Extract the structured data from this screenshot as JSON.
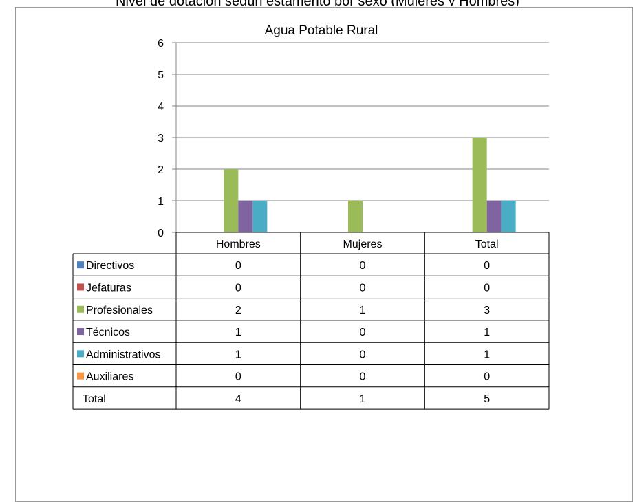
{
  "page_header_fragment": "Nivel de dotación según estamento por sexo (Mujeres y Hombres)",
  "chart_data": {
    "type": "bar",
    "title": "Agua Potable Rural",
    "categories": [
      "Hombres",
      "Mujeres",
      "Total"
    ],
    "ylim": [
      0,
      6
    ],
    "yticks": [
      0,
      1,
      2,
      3,
      4,
      5,
      6
    ],
    "grid": true,
    "legend": "data-table-left",
    "series": [
      {
        "name": "Directivos",
        "color": "#4f81bd",
        "values": [
          0,
          0,
          0
        ]
      },
      {
        "name": "Jefaturas",
        "color": "#c0504d",
        "values": [
          0,
          0,
          0
        ]
      },
      {
        "name": "Profesionales",
        "color": "#9bbb59",
        "values": [
          2,
          1,
          3
        ]
      },
      {
        "name": "Técnicos",
        "color": "#8064a2",
        "values": [
          1,
          0,
          1
        ]
      },
      {
        "name": "Administrativos",
        "color": "#4bacc6",
        "values": [
          1,
          0,
          1
        ]
      },
      {
        "name": "Auxiliares",
        "color": "#f79646",
        "values": [
          0,
          0,
          0
        ]
      }
    ],
    "table_total_row": {
      "label": "Total",
      "values": [
        4,
        1,
        5
      ]
    }
  }
}
